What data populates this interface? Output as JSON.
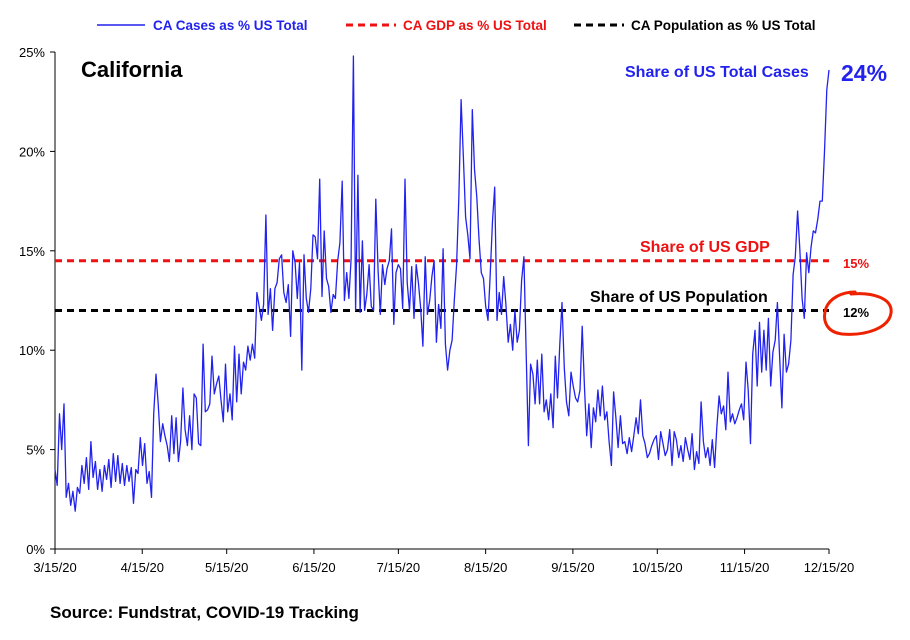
{
  "chart_data": {
    "type": "line",
    "title": "California",
    "xlabel": "",
    "ylabel": "",
    "ylim": [
      0,
      25
    ],
    "y_ticks": [
      "0%",
      "5%",
      "10%",
      "15%",
      "20%",
      "25%"
    ],
    "y_tick_values": [
      0,
      5,
      10,
      15,
      20,
      25
    ],
    "x_ticks": [
      "3/15/20",
      "4/15/20",
      "5/15/20",
      "6/15/20",
      "7/15/20",
      "8/15/20",
      "9/15/20",
      "10/15/20",
      "11/15/20",
      "12/15/20"
    ],
    "x_tick_dates": [
      "2020-03-15",
      "2020-04-15",
      "2020-05-15",
      "2020-06-15",
      "2020-07-15",
      "2020-08-15",
      "2020-09-15",
      "2020-10-15",
      "2020-11-15",
      "2020-12-15"
    ],
    "x_range": [
      "2020-03-15",
      "2020-12-15"
    ],
    "legend_position": "top",
    "legend": [
      "CA Cases as % US Total",
      "CA GDP as % US Total",
      "CA Population as % US Total"
    ],
    "series": [
      {
        "name": "CA Cases as % US Total",
        "color": "#2222ee",
        "style": "solid",
        "values": [
          4.0,
          3.2,
          6.8,
          5.0,
          7.3,
          2.6,
          3.3,
          2.2,
          2.9,
          1.9,
          3.1,
          2.8,
          4.2,
          3.3,
          4.6,
          3.0,
          5.4,
          3.6,
          4.4,
          3.0,
          4.0,
          2.9,
          4.2,
          3.5,
          4.5,
          3.1,
          4.8,
          3.4,
          4.7,
          3.3,
          4.3,
          3.2,
          4.2,
          3.4,
          4.1,
          2.3,
          4.0,
          3.8,
          5.6,
          4.2,
          5.3,
          3.3,
          3.9,
          2.6,
          6.8,
          8.8,
          7.3,
          5.4,
          6.3,
          5.7,
          5.2,
          4.4,
          6.7,
          4.8,
          6.6,
          4.4,
          5.4,
          8.1,
          6.0,
          5.2,
          6.7,
          5.0,
          7.8,
          7.6,
          5.3,
          5.2,
          10.3,
          6.9,
          7.0,
          7.3,
          9.7,
          7.8,
          8.3,
          8.7,
          7.5,
          6.4,
          9.3,
          6.9,
          7.8,
          6.5,
          10.2,
          7.4,
          9.8,
          7.8,
          9.4,
          9.0,
          10.2,
          9.5,
          10.3,
          9.6,
          12.9,
          12.2,
          11.5,
          12.3,
          16.8,
          11.8,
          13.1,
          11.0,
          13.1,
          13.4,
          14.6,
          14.8,
          12.9,
          12.4,
          13.3,
          10.7,
          15.0,
          14.4,
          12.6,
          14.4,
          9.0,
          14.8,
          12.6,
          11.9,
          13.1,
          15.8,
          15.7,
          14.6,
          18.6,
          12.7,
          16.0,
          13.6,
          13.2,
          11.9,
          12.8,
          12.6,
          14.5,
          15.4,
          18.5,
          12.5,
          13.9,
          12.6,
          14.6,
          24.8,
          12.0,
          18.8,
          11.9,
          15.5,
          12.0,
          12.8,
          14.3,
          12.2,
          12.0,
          17.6,
          14.0,
          11.8,
          14.3,
          13.3,
          14.1,
          14.5,
          16.1,
          11.3,
          13.9,
          14.3,
          14.1,
          12.1,
          18.6,
          13.4,
          12.0,
          14.2,
          11.6,
          14.3,
          13.4,
          12.1,
          10.2,
          14.7,
          11.8,
          12.5,
          13.7,
          14.5,
          10.4,
          12.3,
          11.1,
          15.1,
          10.3,
          9.0,
          10.0,
          10.5,
          12.5,
          14.3,
          17.6,
          22.6,
          19.8,
          16.7,
          15.8,
          14.6,
          22.1,
          19.1,
          17.7,
          15.6,
          13.9,
          13.6,
          12.2,
          11.5,
          13.8,
          16.5,
          18.2,
          11.5,
          12.9,
          11.8,
          13.7,
          12.3,
          10.4,
          11.3,
          10.0,
          12.0,
          10.4,
          11.0,
          13.5,
          14.7,
          10.0,
          5.2,
          9.3,
          8.8,
          7.3,
          9.5,
          7.3,
          9.8,
          6.9,
          7.5,
          6.5,
          7.8,
          6.1,
          9.7,
          7.6,
          10.3,
          12.4,
          9.1,
          7.4,
          6.7,
          8.9,
          8.2,
          7.6,
          7.4,
          8.0,
          11.2,
          8.1,
          5.7,
          7.3,
          5.1,
          7.1,
          6.4,
          8.0,
          6.7,
          8.2,
          6.5,
          6.9,
          5.4,
          4.2,
          7.9,
          6.6,
          5.1,
          6.7,
          5.3,
          5.4,
          4.8,
          5.6,
          4.9,
          5.7,
          6.6,
          5.8,
          7.5,
          5.7,
          5.3,
          4.6,
          4.8,
          5.2,
          5.5,
          5.7,
          4.5,
          5.9,
          5.3,
          4.7,
          5.0,
          6.0,
          4.2,
          5.9,
          5.5,
          4.6,
          5.2,
          4.4,
          5.6,
          5.0,
          4.5,
          5.8,
          4.0,
          4.9,
          4.3,
          7.4,
          5.4,
          4.6,
          5.1,
          4.2,
          5.5,
          4.1,
          6.1,
          7.7,
          6.8,
          7.2,
          6.0,
          8.9,
          6.4,
          6.8,
          6.3,
          6.6,
          7.0,
          7.3,
          6.5,
          9.4,
          8.0,
          5.3,
          9.8,
          11.0,
          8.2,
          11.4,
          8.9,
          11.0,
          9.0,
          11.6,
          8.2,
          9.9,
          10.5,
          12.4,
          9.7,
          7.1,
          10.8,
          8.9,
          9.3,
          10.5,
          13.8,
          14.7,
          17.0,
          15.1,
          12.6,
          11.6,
          14.9,
          13.9,
          15.2,
          16.0,
          15.9,
          16.6,
          17.5,
          17.5,
          20.0,
          23.1,
          24.1
        ],
        "end_label": "24%",
        "annotation": "Share of US Total Cases"
      },
      {
        "name": "CA GDP as % US Total",
        "color": "#ee1111",
        "style": "dashed",
        "constant": 14.5,
        "end_label": "15%",
        "annotation": "Share of US GDP"
      },
      {
        "name": "CA Population as % US Total",
        "color": "#000000",
        "style": "dashed",
        "constant": 12.0,
        "end_label": "12%",
        "annotation": "Share of US Population"
      }
    ],
    "highlight": {
      "target": "CA Population as % US Total",
      "shape": "hand-drawn circle",
      "color": "#ee2200"
    }
  },
  "footer": {
    "source": "Source: Fundstrat, COVID-19 Tracking"
  }
}
